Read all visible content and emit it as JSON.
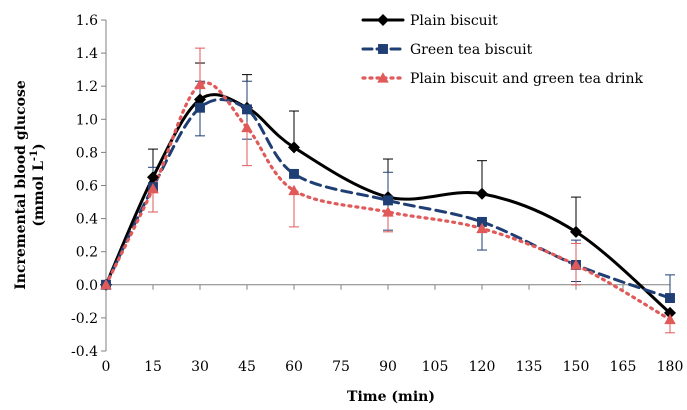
{
  "chart_data": {
    "type": "line",
    "xlabel": "Time (min)",
    "ylabel_main": "Incremental blood glucose",
    "ylabel_unit_prefix": "(mmol L",
    "ylabel_unit_sup": "-1",
    "ylabel_unit_suffix": ")",
    "xlim": [
      0,
      180
    ],
    "ylim": [
      -0.4,
      1.6
    ],
    "xticks": [
      0,
      15,
      30,
      45,
      60,
      75,
      90,
      105,
      120,
      135,
      150,
      165,
      180
    ],
    "yticks": [
      "-0.4",
      "-0.2",
      "0.0",
      "0.2",
      "0.4",
      "0.6",
      "0.8",
      "1.0",
      "1.2",
      "1.4",
      "1.6"
    ],
    "grid": false,
    "legend_position": "top-right",
    "series": [
      {
        "name": "Plain biscuit",
        "color": "#000000",
        "marker": "diamond",
        "line": "solid",
        "x": [
          0,
          15,
          30,
          45,
          60,
          90,
          120,
          150,
          180
        ],
        "y": [
          0.0,
          0.65,
          1.12,
          1.07,
          0.83,
          0.53,
          0.55,
          0.32,
          -0.17
        ],
        "err_upper": [
          0.0,
          0.17,
          0.22,
          0.2,
          0.22,
          0.23,
          0.2,
          0.21,
          0.0
        ],
        "err_lower": [
          0.0,
          0.0,
          0.0,
          0.0,
          0.0,
          0.0,
          0.0,
          0.0,
          0.0
        ]
      },
      {
        "name": "Green tea biscuit",
        "color": "#1f3f74",
        "marker": "square",
        "line": "dashed",
        "x": [
          0,
          15,
          30,
          45,
          60,
          90,
          120,
          150,
          180
        ],
        "y": [
          0.0,
          0.59,
          1.07,
          1.06,
          0.67,
          0.51,
          0.38,
          0.12,
          -0.08
        ],
        "err_upper": [
          0.0,
          0.12,
          0.16,
          0.17,
          0.0,
          0.17,
          0.0,
          0.15,
          0.14
        ],
        "err_lower": [
          0.0,
          0.15,
          0.17,
          0.18,
          0.0,
          0.18,
          0.17,
          0.1,
          0.0
        ]
      },
      {
        "name": "Plain biscuit and green tea drink",
        "color": "#e05a5a",
        "marker": "triangle",
        "line": "dotted",
        "x": [
          0,
          15,
          30,
          45,
          60,
          90,
          120,
          150,
          180
        ],
        "y": [
          0.0,
          0.58,
          1.21,
          0.95,
          0.57,
          0.44,
          0.34,
          0.12,
          -0.21
        ],
        "err_upper": [
          0.0,
          0.0,
          0.22,
          0.0,
          0.0,
          0.0,
          0.0,
          0.13,
          0.0
        ],
        "err_lower": [
          0.0,
          0.14,
          0.0,
          0.23,
          0.22,
          0.12,
          0.0,
          0.12,
          0.08
        ]
      }
    ]
  }
}
